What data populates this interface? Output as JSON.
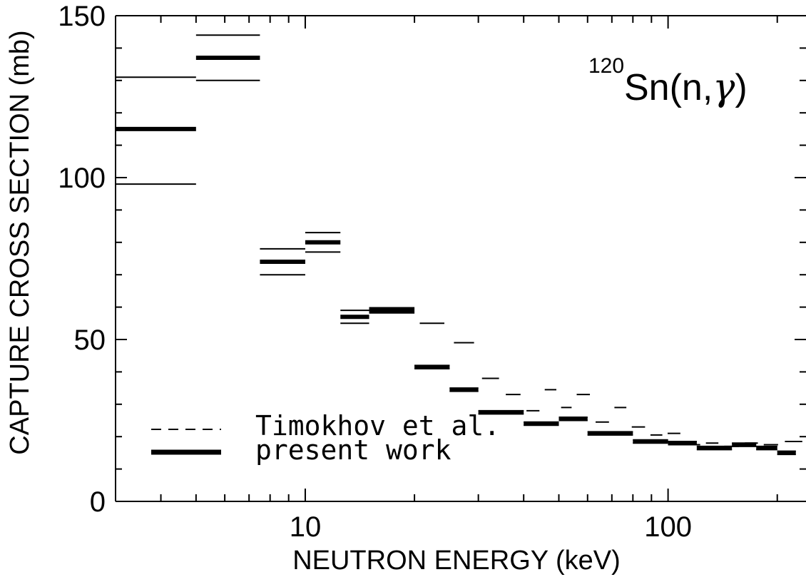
{
  "chart_data": {
    "type": "line",
    "xlabel": "NEUTRON ENERGY (keV)",
    "ylabel": "CAPTURE CROSS SECTION (mb)",
    "xscale": "log",
    "xlim": [
      3,
      240
    ],
    "ylim": [
      0,
      150
    ],
    "x_tick_labels": [
      "10",
      "100"
    ],
    "y_tick_labels": [
      "0",
      "50",
      "100",
      "150"
    ],
    "annotation": {
      "superscript": "120",
      "element": "Sn",
      "reaction_open": "(n,",
      "reaction_symbol": "γ",
      "reaction_close": ")"
    },
    "legend_position": "bottom-left",
    "series": [
      {
        "name": "present work",
        "style": "solid-thick",
        "bins": [
          {
            "x0": 3,
            "x1": 5,
            "y": 115,
            "err_lo": 98,
            "err_hi": 131
          },
          {
            "x0": 5,
            "x1": 7.5,
            "y": 137,
            "err_lo": 130,
            "err_hi": 144
          },
          {
            "x0": 7.5,
            "x1": 10,
            "y": 74,
            "err_lo": 70,
            "err_hi": 78
          },
          {
            "x0": 10,
            "x1": 12.5,
            "y": 80,
            "err_lo": 77,
            "err_hi": 83
          },
          {
            "x0": 12.5,
            "x1": 15,
            "y": 57,
            "err_lo": 55,
            "err_hi": 59
          },
          {
            "x0": 15,
            "x1": 20,
            "y": 59,
            "err_lo": 58.2,
            "err_hi": 59.8
          },
          {
            "x0": 20,
            "x1": 25,
            "y": 41.5,
            "err_lo": 41,
            "err_hi": 42
          },
          {
            "x0": 25,
            "x1": 30,
            "y": 34.5,
            "err_lo": 34,
            "err_hi": 35
          },
          {
            "x0": 30,
            "x1": 40,
            "y": 27.5,
            "err_lo": 27,
            "err_hi": 28
          },
          {
            "x0": 40,
            "x1": 50,
            "y": 24,
            "err_lo": 23.5,
            "err_hi": 24.5
          },
          {
            "x0": 50,
            "x1": 60,
            "y": 25.5,
            "err_lo": 25,
            "err_hi": 26
          },
          {
            "x0": 60,
            "x1": 80,
            "y": 21,
            "err_lo": 20.5,
            "err_hi": 21.5
          },
          {
            "x0": 80,
            "x1": 100,
            "y": 18.5,
            "err_lo": 18,
            "err_hi": 19
          },
          {
            "x0": 100,
            "x1": 120,
            "y": 18,
            "err_lo": 17.5,
            "err_hi": 18.5
          },
          {
            "x0": 120,
            "x1": 150,
            "y": 16.5,
            "err_lo": 16,
            "err_hi": 17
          },
          {
            "x0": 150,
            "x1": 175,
            "y": 17.5,
            "err_lo": 17,
            "err_hi": 18
          },
          {
            "x0": 175,
            "x1": 200,
            "y": 16.5,
            "err_lo": 16,
            "err_hi": 17
          },
          {
            "x0": 200,
            "x1": 225,
            "y": 15,
            "err_lo": 14.5,
            "err_hi": 15.5
          }
        ]
      },
      {
        "name": "Timokhov et al.",
        "style": "dashed-thin",
        "bins": [
          {
            "x0": 20,
            "x1": 25,
            "y": 55
          },
          {
            "x0": 25,
            "x1": 30,
            "y": 49
          },
          {
            "x0": 30,
            "x1": 35,
            "y": 38
          },
          {
            "x0": 35,
            "x1": 40,
            "y": 33
          },
          {
            "x0": 40,
            "x1": 45,
            "y": 28
          },
          {
            "x0": 45,
            "x1": 50,
            "y": 34.5
          },
          {
            "x0": 50,
            "x1": 55,
            "y": 29
          },
          {
            "x0": 55,
            "x1": 62,
            "y": 33
          },
          {
            "x0": 62,
            "x1": 70,
            "y": 24.5
          },
          {
            "x0": 70,
            "x1": 78,
            "y": 29
          },
          {
            "x0": 78,
            "x1": 88,
            "y": 23
          },
          {
            "x0": 88,
            "x1": 98,
            "y": 20.5
          },
          {
            "x0": 98,
            "x1": 110,
            "y": 21
          },
          {
            "x0": 110,
            "x1": 125,
            "y": 17.5
          },
          {
            "x0": 125,
            "x1": 140,
            "y": 18
          },
          {
            "x0": 140,
            "x1": 160,
            "y": 17
          },
          {
            "x0": 160,
            "x1": 180,
            "y": 18
          },
          {
            "x0": 180,
            "x1": 205,
            "y": 17.5
          },
          {
            "x0": 205,
            "x1": 240,
            "y": 18.5
          }
        ]
      }
    ]
  }
}
